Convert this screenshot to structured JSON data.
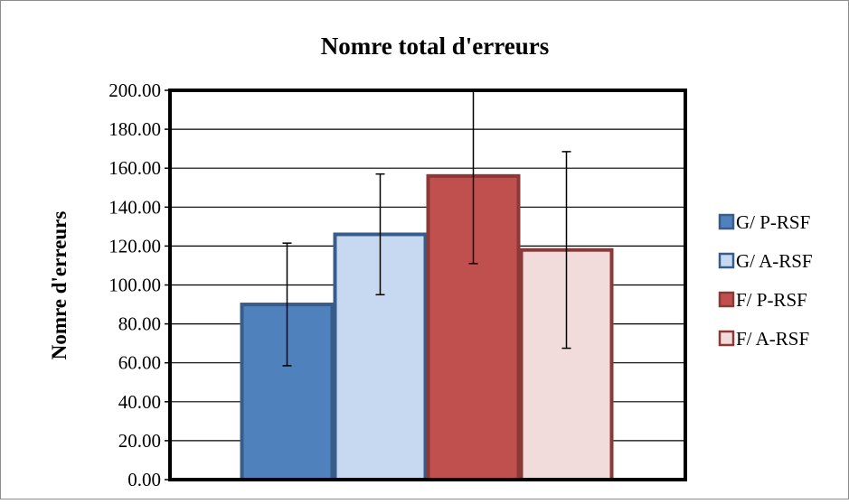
{
  "chart_data": {
    "type": "bar",
    "title": "Nomre total d'erreurs",
    "xlabel": "",
    "ylabel": "Nomre d'erreurs",
    "ylim": [
      0,
      200
    ],
    "y_tick_step": 20,
    "y_tick_labels": [
      "0.00",
      "20.00",
      "40.00",
      "60.00",
      "80.00",
      "100.00",
      "120.00",
      "140.00",
      "160.00",
      "180.00",
      "200.00"
    ],
    "grid": true,
    "legend_position": "right",
    "categories": [
      ""
    ],
    "series": [
      {
        "name": "G/ P-RSF",
        "values": [
          90
        ],
        "error": [
          31.5
        ],
        "fill": "#4F81BD",
        "stroke": "#385D8A"
      },
      {
        "name": "G/ A-RSF",
        "values": [
          126
        ],
        "error": [
          31
        ],
        "fill": "#C6D9F1",
        "stroke": "#385D8A"
      },
      {
        "name": "F/ P-RSF",
        "values": [
          156
        ],
        "error": [
          45
        ],
        "fill": "#C0504D",
        "stroke": "#8C3836"
      },
      {
        "name": "F/ A-RSF",
        "values": [
          118
        ],
        "error": [
          50.5
        ],
        "fill": "#F2DCDB",
        "stroke": "#8C3836"
      }
    ]
  }
}
